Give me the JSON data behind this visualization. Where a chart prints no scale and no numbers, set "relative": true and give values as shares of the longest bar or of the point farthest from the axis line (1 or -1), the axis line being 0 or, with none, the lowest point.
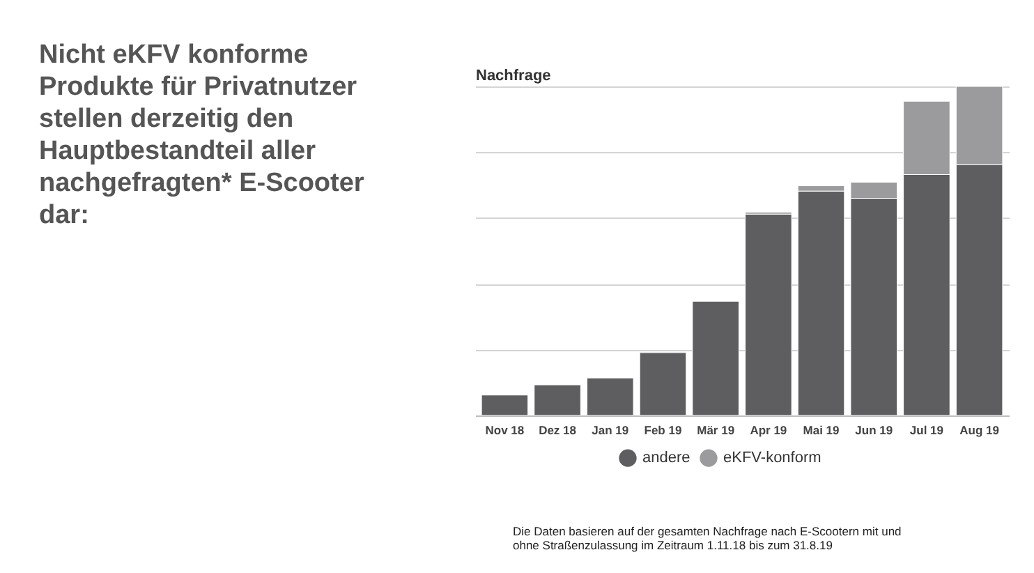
{
  "chart_data": {
    "type": "bar",
    "title": "Nicht eKFV konforme Produkte für Privatnutzer stellen derzeitig den Hauptbestandteil aller nachgefragten* E-Scooter dar:",
    "ylabel": "Nachfrage",
    "categories": [
      "Nov 18",
      "Dez 18",
      "Jan 19",
      "Feb 19",
      "Mär 19",
      "Apr 19",
      "Mai 19",
      "Jun 19",
      "Jul 19",
      "Aug 19"
    ],
    "series": [
      {
        "name": "andere",
        "color": "#5e5e60",
        "values": [
          0.062,
          0.093,
          0.114,
          0.191,
          0.347,
          0.612,
          0.682,
          0.66,
          0.732,
          0.763
        ]
      },
      {
        "name": "eKFV-konform",
        "color": "#9b9b9d",
        "values": [
          null,
          null,
          null,
          null,
          null,
          0.006,
          0.016,
          0.049,
          0.223,
          0.237
        ]
      }
    ],
    "stacked": true,
    "relative": true,
    "grid": "y",
    "legend": "bottom",
    "annotations": [
      "Die Daten basieren auf der gesamten Nachfrage nach E-Scootern mit und ohne Straßenzulassung im Zeitraum 1.11.18 bis zum 31.8.19"
    ]
  }
}
